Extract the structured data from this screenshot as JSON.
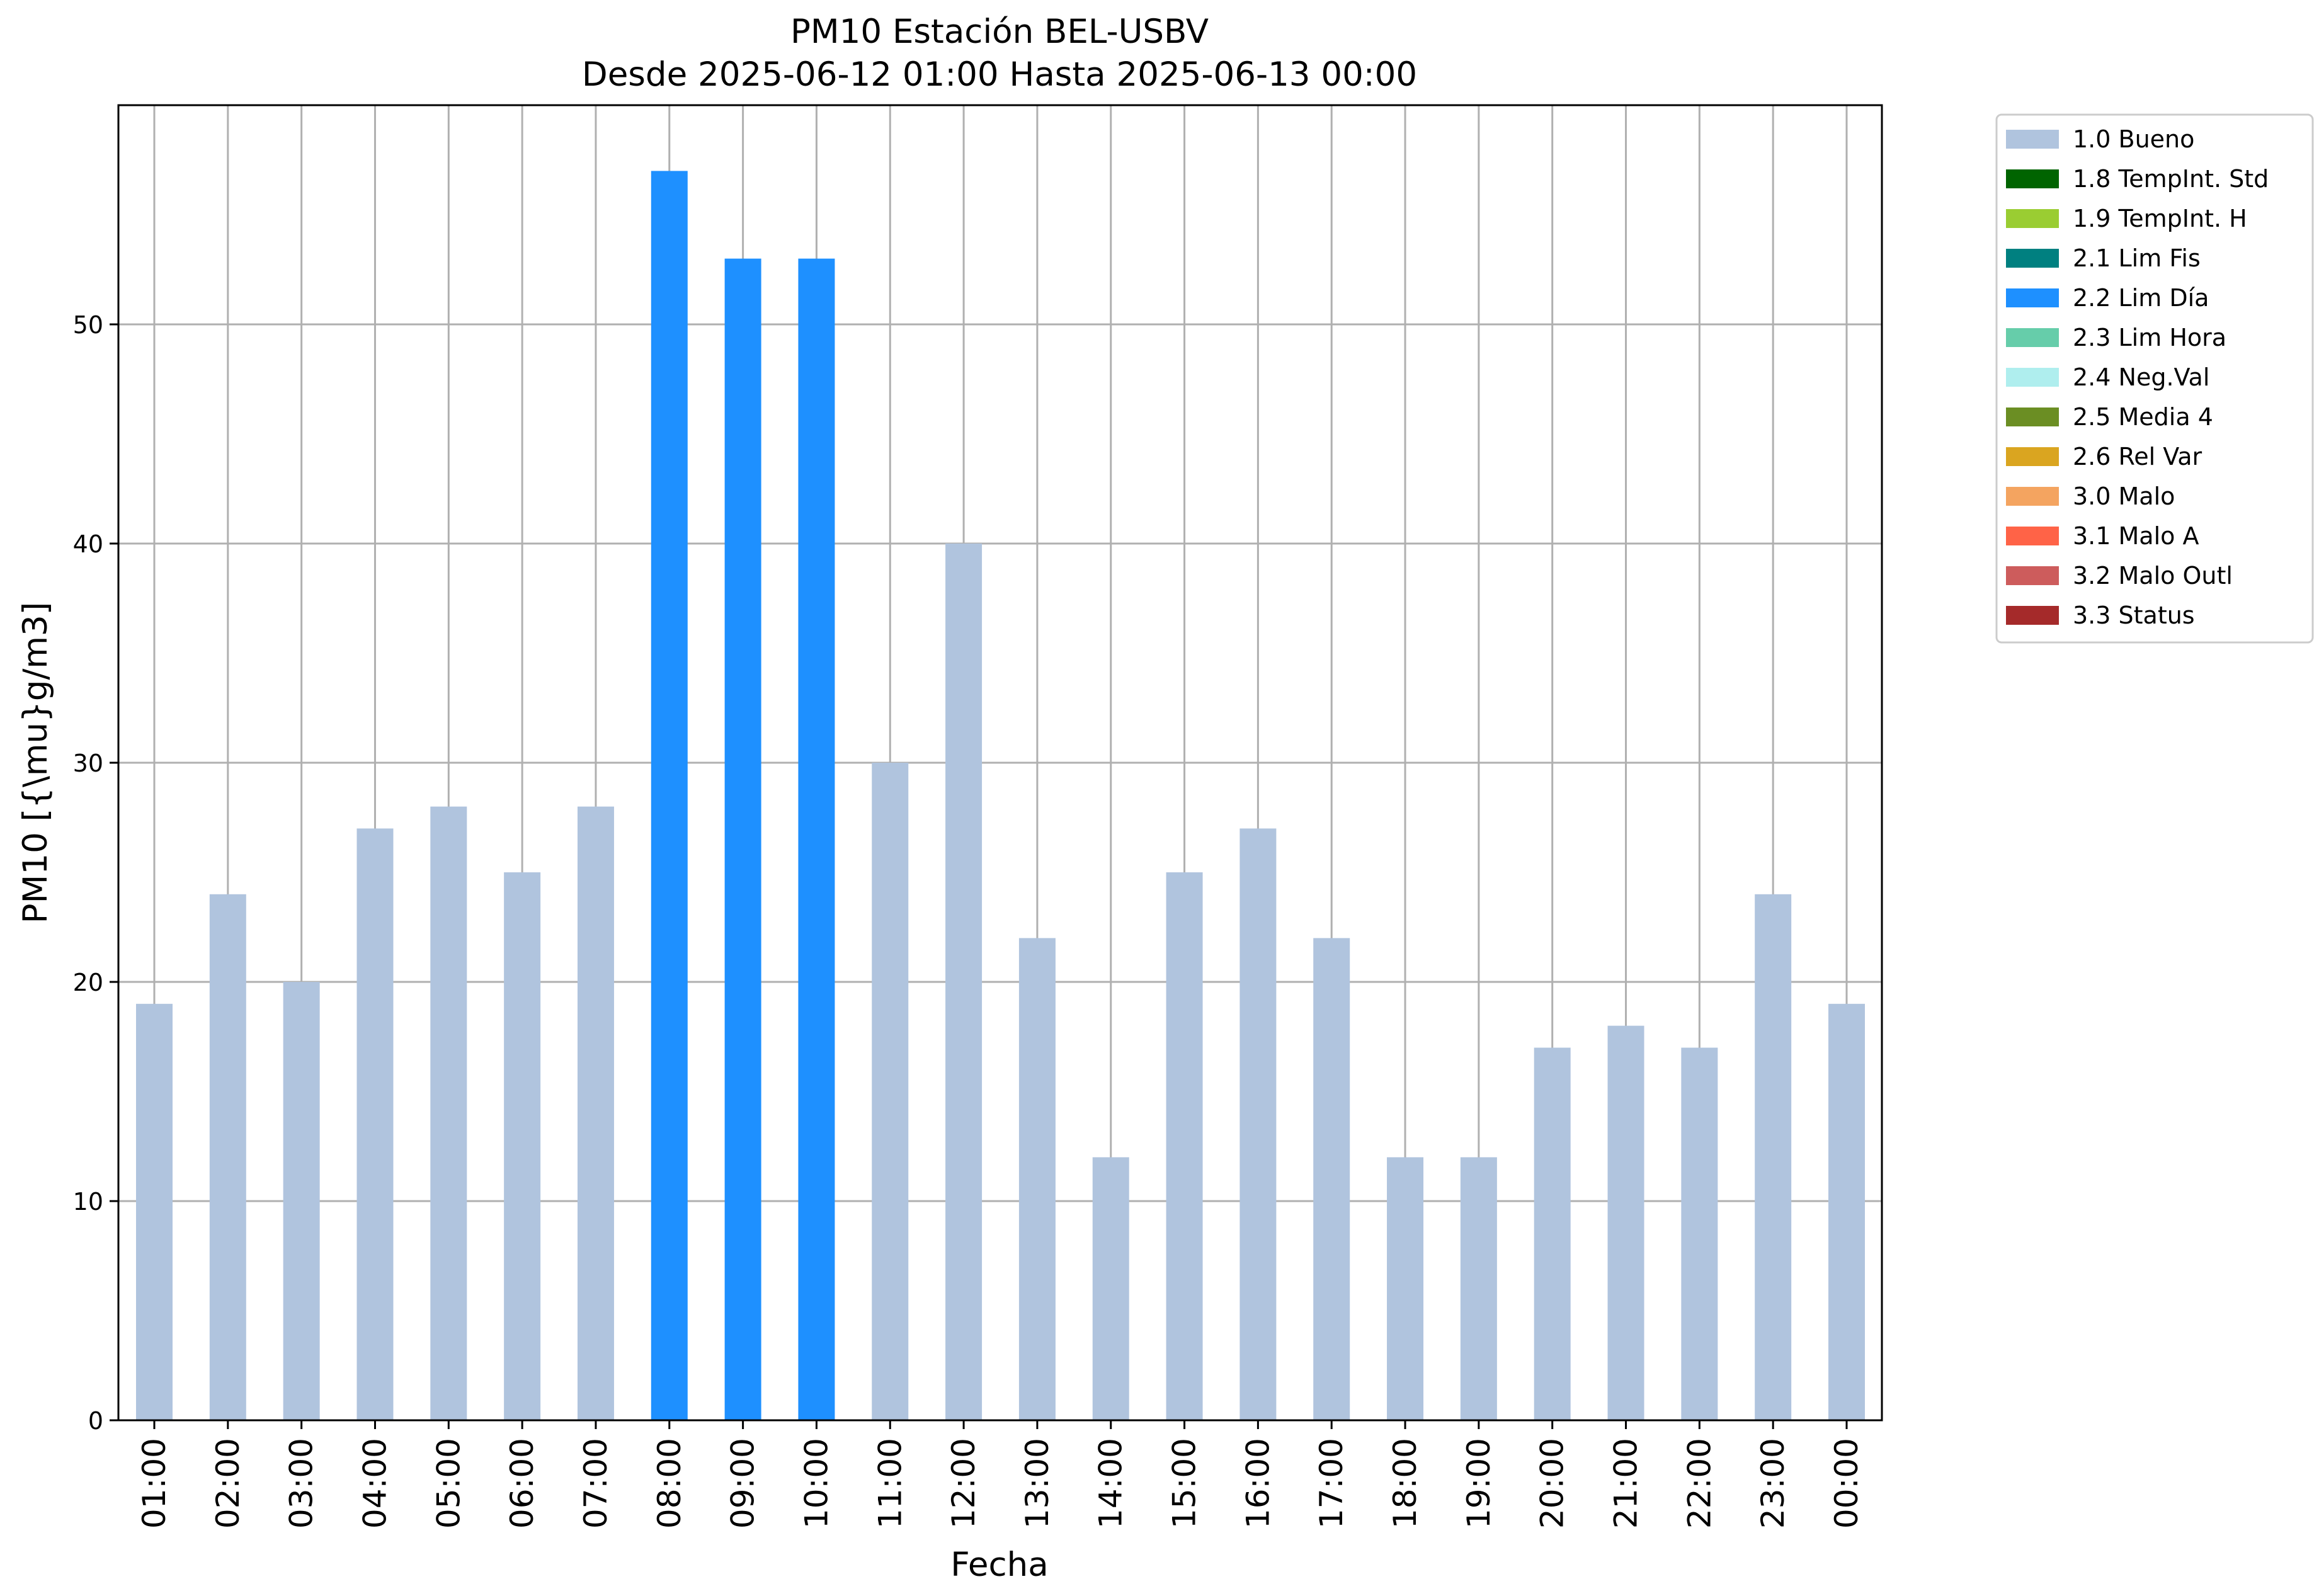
{
  "chart_data": {
    "type": "bar",
    "title": "PM10 Estación BEL-USBV",
    "subtitle": "Desde 2025-06-12 01:00 Hasta 2025-06-13 00:00",
    "xlabel": "Fecha",
    "ylabel": "PM10 [{\\mu}g/m3]",
    "ylim": [
      0,
      60
    ],
    "yticks": [
      0,
      10,
      20,
      30,
      40,
      50
    ],
    "grid": true,
    "legend_position": "outside-right",
    "categories": [
      "01:00",
      "02:00",
      "03:00",
      "04:00",
      "05:00",
      "06:00",
      "07:00",
      "08:00",
      "09:00",
      "10:00",
      "11:00",
      "12:00",
      "13:00",
      "14:00",
      "15:00",
      "16:00",
      "17:00",
      "18:00",
      "19:00",
      "20:00",
      "21:00",
      "22:00",
      "23:00",
      "00:00"
    ],
    "values": [
      19,
      24,
      20,
      27,
      28,
      25,
      28,
      57,
      53,
      53,
      30,
      40,
      22,
      12,
      25,
      27,
      22,
      12,
      12,
      17,
      18,
      17,
      24,
      19
    ],
    "flags": [
      "1.0 Bueno",
      "1.0 Bueno",
      "1.0 Bueno",
      "1.0 Bueno",
      "1.0 Bueno",
      "1.0 Bueno",
      "1.0 Bueno",
      "2.2 Lim Día",
      "2.2 Lim Día",
      "2.2 Lim Día",
      "1.0 Bueno",
      "1.0 Bueno",
      "1.0 Bueno",
      "1.0 Bueno",
      "1.0 Bueno",
      "1.0 Bueno",
      "1.0 Bueno",
      "1.0 Bueno",
      "1.0 Bueno",
      "1.0 Bueno",
      "1.0 Bueno",
      "1.0 Bueno",
      "1.0 Bueno",
      "1.0 Bueno"
    ],
    "legend": [
      {
        "label": "1.0 Bueno",
        "color": "#b0c4de"
      },
      {
        "label": "1.8 TempInt. Std",
        "color": "#006400"
      },
      {
        "label": "1.9 TempInt. H",
        "color": "#9acd32"
      },
      {
        "label": "2.1 Lim Fis",
        "color": "#008080"
      },
      {
        "label": "2.2 Lim Día",
        "color": "#1e90ff"
      },
      {
        "label": "2.3 Lim Hora",
        "color": "#66cdaa"
      },
      {
        "label": "2.4 Neg.Val",
        "color": "#afeeee"
      },
      {
        "label": "2.5 Media 4",
        "color": "#6b8e23"
      },
      {
        "label": "2.6 Rel Var",
        "color": "#daa520"
      },
      {
        "label": "3.0 Malo",
        "color": "#f4a460"
      },
      {
        "label": "3.1 Malo A",
        "color": "#ff6347"
      },
      {
        "label": "3.2 Malo Outl",
        "color": "#cd5c5c"
      },
      {
        "label": "3.3 Status",
        "color": "#a52a2a"
      }
    ]
  }
}
